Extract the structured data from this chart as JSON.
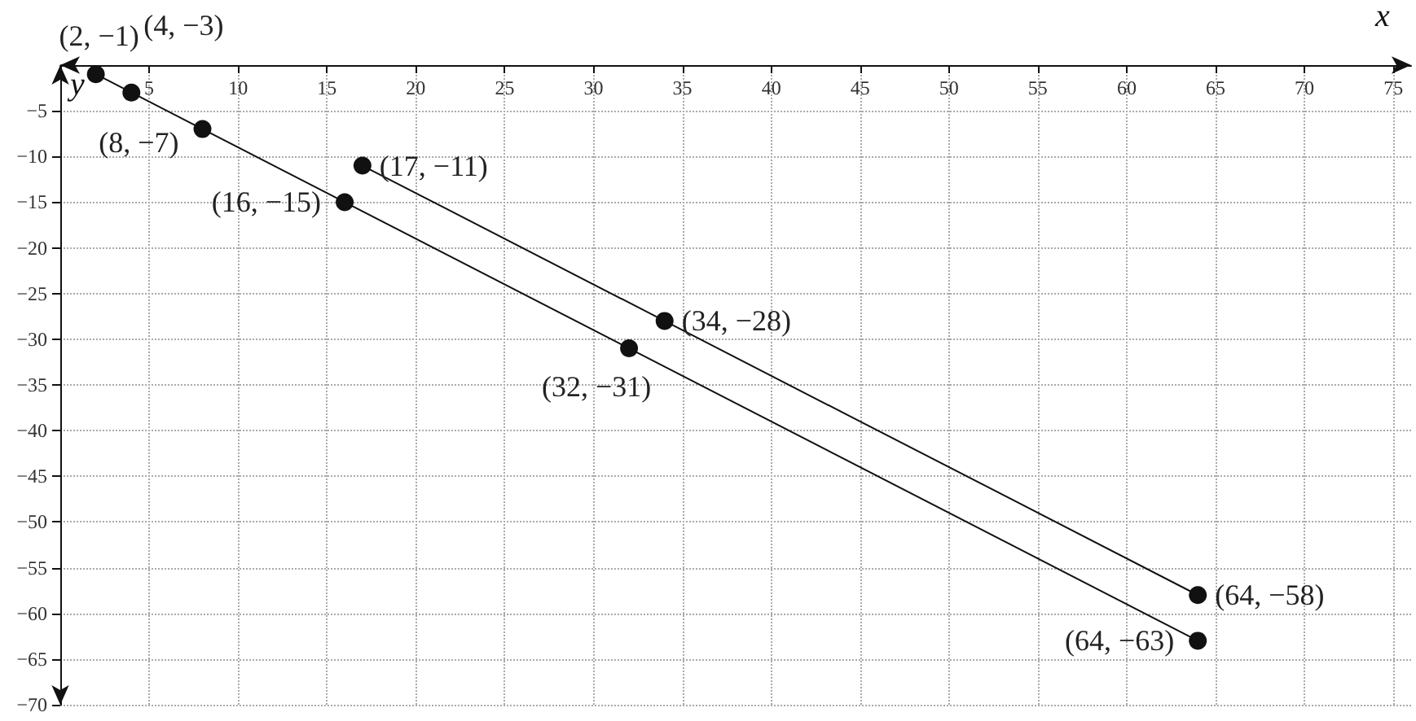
{
  "chart_data": {
    "type": "line",
    "xlabel": "x",
    "ylabel": "y",
    "xlim": [
      0,
      76
    ],
    "ylim": [
      -70,
      0
    ],
    "xticks": [
      5,
      10,
      15,
      20,
      25,
      30,
      35,
      40,
      45,
      50,
      55,
      60,
      65,
      70,
      75
    ],
    "yticks": [
      -5,
      -10,
      -15,
      -20,
      -25,
      -30,
      -35,
      -40,
      -45,
      -50,
      -55,
      -60,
      -65,
      -70
    ],
    "series": [
      {
        "color": "#111111",
        "x": [
          2,
          4,
          8,
          16,
          32,
          64
        ],
        "values": [
          -1,
          -3,
          -7,
          -15,
          -31,
          -63
        ],
        "value_labels": [
          "(2, −1)",
          "(4, −3)",
          "(8, −7)",
          "(16, −15)",
          "(32, −31)",
          "(64, −63)"
        ]
      },
      {
        "color": "#111111",
        "x": [
          17,
          34,
          64
        ],
        "values": [
          -11,
          -28,
          -58
        ],
        "value_labels": [
          "(17, −11)",
          "(34, −28)",
          "(64, −58)"
        ]
      }
    ],
    "grid": true,
    "marker": "circle",
    "line_style": "solid"
  }
}
